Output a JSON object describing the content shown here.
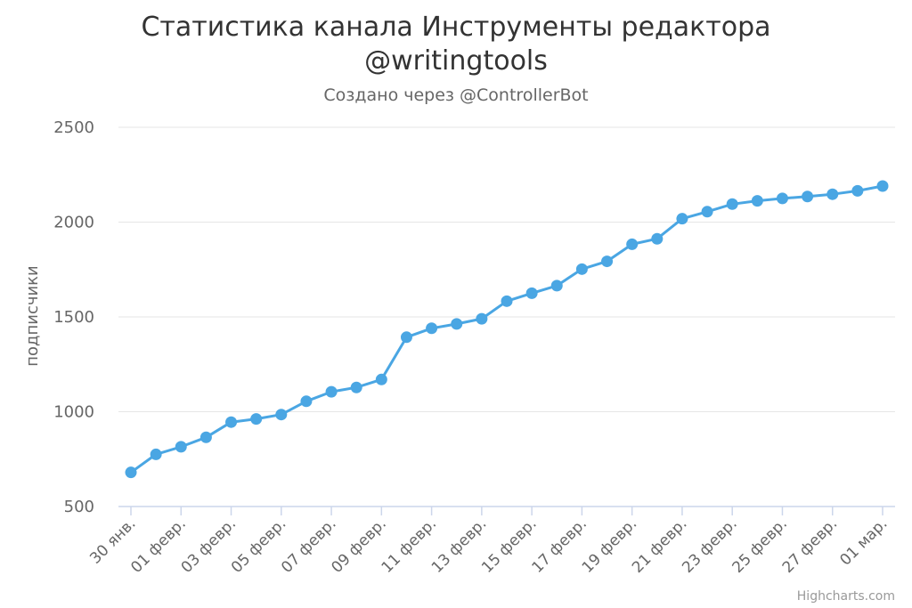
{
  "chart_data": {
    "type": "line",
    "title_line1": "Статистика канала Инструменты редактора",
    "title_line2": "@writingtools",
    "subtitle": "Создано через @ControllerBot",
    "ylabel": "подписчики",
    "credits": "Highcharts.com",
    "ylim": [
      500,
      2500
    ],
    "yticks": [
      500,
      1000,
      1500,
      2000,
      2500
    ],
    "grid": true,
    "legend": "none",
    "color": "#4aa6e3",
    "x": [
      "2024-01-30",
      "2024-01-31",
      "2024-02-01",
      "2024-02-02",
      "2024-02-03",
      "2024-02-04",
      "2024-02-05",
      "2024-02-06",
      "2024-02-07",
      "2024-02-08",
      "2024-02-09",
      "2024-02-10",
      "2024-02-11",
      "2024-02-12",
      "2024-02-13",
      "2024-02-14",
      "2024-02-15",
      "2024-02-16",
      "2024-02-17",
      "2024-02-18",
      "2024-02-19",
      "2024-02-20",
      "2024-02-21",
      "2024-02-22",
      "2024-02-23",
      "2024-02-24",
      "2024-02-25",
      "2024-02-26",
      "2024-02-27",
      "2024-02-28",
      "2024-03-01"
    ],
    "values": [
      680,
      775,
      815,
      865,
      945,
      962,
      985,
      1055,
      1105,
      1128,
      1170,
      1393,
      1440,
      1463,
      1490,
      1583,
      1625,
      1665,
      1752,
      1793,
      1883,
      1912,
      2018,
      2055,
      2095,
      2112,
      2125,
      2135,
      2147,
      2165,
      2190
    ],
    "xtick_labels": [
      "30 янв.",
      "01 февр.",
      "03 февр.",
      "05 февр.",
      "07 февр.",
      "09 февр.",
      "11 февр.",
      "13 февр.",
      "15 февр.",
      "17 февр.",
      "19 февр.",
      "21 февр.",
      "23 февр.",
      "25 февр.",
      "27 февр.",
      "01 мар."
    ]
  }
}
